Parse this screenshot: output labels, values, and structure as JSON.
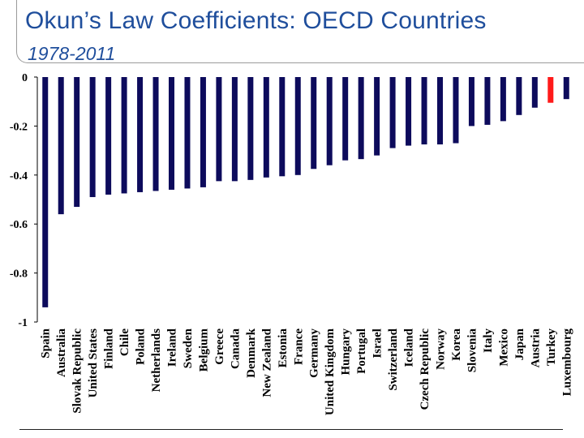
{
  "slide": {
    "title": "Okun’s Law Coefficients: OECD Countries",
    "subtitle": "1978-2011"
  },
  "colors": {
    "bar": "#0d0b5c",
    "highlight": "#ff1a1a",
    "title": "#1f4e9c"
  },
  "chart_data": {
    "type": "bar",
    "title": "",
    "xlabel": "",
    "ylabel": "",
    "ylim": [
      -1,
      0
    ],
    "yticks": [
      0,
      -0.2,
      -0.4,
      -0.6,
      -0.8,
      -1
    ],
    "ytick_labels": [
      "0",
      "-0.2",
      "-0.4",
      "-0.6",
      "-0.8",
      "-1"
    ],
    "grid": false,
    "highlighted_category": "Turkey",
    "categories": [
      "Spain",
      "Australia",
      "Slovak Republic",
      "United States",
      "Finland",
      "Chile",
      "Poland",
      "Netherlands",
      "Ireland",
      "Sweden",
      "Belgium",
      "Greece",
      "Canada",
      "Denmark",
      "New Zealand",
      "Estonia",
      "France",
      "Germany",
      "United Kingdom",
      "Hungary",
      "Portugal",
      "Israel",
      "Switzerland",
      "Iceland",
      "Czech Republic",
      "Norway",
      "Korea",
      "Slovenia",
      "Italy",
      "Mexico",
      "Japan",
      "Austria",
      "Turkey",
      "Luxembourg"
    ],
    "values": [
      -0.94,
      -0.56,
      -0.53,
      -0.49,
      -0.48,
      -0.475,
      -0.47,
      -0.465,
      -0.46,
      -0.455,
      -0.45,
      -0.425,
      -0.425,
      -0.42,
      -0.41,
      -0.405,
      -0.4,
      -0.375,
      -0.36,
      -0.34,
      -0.335,
      -0.32,
      -0.29,
      -0.28,
      -0.275,
      -0.275,
      -0.27,
      -0.2,
      -0.195,
      -0.18,
      -0.155,
      -0.125,
      -0.105,
      -0.09
    ]
  }
}
